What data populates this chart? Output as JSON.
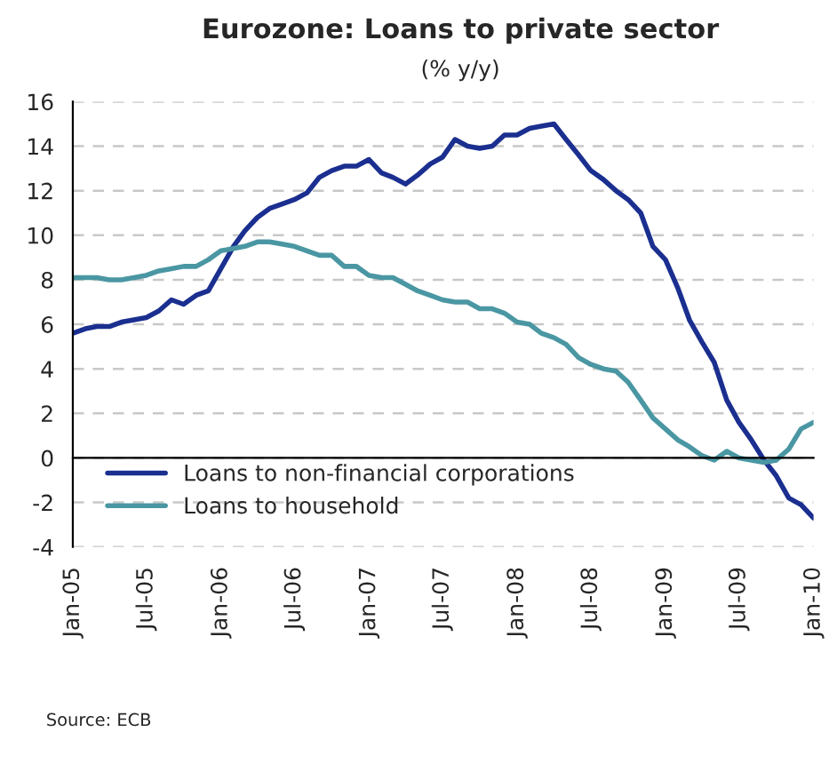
{
  "chart_data": {
    "type": "line",
    "title": "Eurozone: Loans to private sector",
    "subtitle": "(% y/y)",
    "annotations": [
      "Source: ECB"
    ],
    "x": [
      "2005-01",
      "2005-02",
      "2005-03",
      "2005-04",
      "2005-05",
      "2005-06",
      "2005-07",
      "2005-08",
      "2005-09",
      "2005-10",
      "2005-11",
      "2005-12",
      "2006-01",
      "2006-02",
      "2006-03",
      "2006-04",
      "2006-05",
      "2006-06",
      "2006-07",
      "2006-08",
      "2006-09",
      "2006-10",
      "2006-11",
      "2006-12",
      "2007-01",
      "2007-02",
      "2007-03",
      "2007-04",
      "2007-05",
      "2007-06",
      "2007-07",
      "2007-08",
      "2007-09",
      "2007-10",
      "2007-11",
      "2007-12",
      "2008-01",
      "2008-02",
      "2008-03",
      "2008-04",
      "2008-05",
      "2008-06",
      "2008-07",
      "2008-08",
      "2008-09",
      "2008-10",
      "2008-11",
      "2008-12",
      "2009-01",
      "2009-02",
      "2009-03",
      "2009-04",
      "2009-05",
      "2009-06",
      "2009-07",
      "2009-08",
      "2009-09",
      "2009-10",
      "2009-11",
      "2009-12",
      "2010-01"
    ],
    "series": [
      {
        "name": "Loans to non-financial corporations",
        "color": "#1a2f8f",
        "values": [
          5.6,
          5.8,
          5.9,
          5.9,
          6.1,
          6.2,
          6.3,
          6.6,
          7.1,
          6.9,
          7.3,
          7.5,
          8.5,
          9.5,
          10.2,
          10.8,
          11.2,
          11.4,
          11.6,
          11.9,
          12.6,
          12.9,
          13.1,
          13.1,
          13.4,
          12.8,
          12.6,
          12.3,
          12.7,
          13.2,
          13.5,
          14.3,
          14.0,
          13.9,
          14.0,
          14.5,
          14.5,
          14.8,
          14.9,
          15.0,
          14.3,
          13.6,
          12.9,
          12.5,
          12.0,
          11.6,
          11.0,
          9.5,
          8.9,
          7.6,
          6.2,
          5.2,
          4.3,
          2.6,
          1.6,
          0.8,
          -0.1,
          -0.8,
          -1.8,
          -2.1,
          -2.7
        ]
      },
      {
        "name": "Loans to household",
        "color": "#4a97a3",
        "values": [
          8.1,
          8.1,
          8.1,
          8.0,
          8.0,
          8.1,
          8.2,
          8.4,
          8.5,
          8.6,
          8.6,
          8.9,
          9.3,
          9.4,
          9.5,
          9.7,
          9.7,
          9.6,
          9.5,
          9.3,
          9.1,
          9.1,
          8.6,
          8.6,
          8.2,
          8.1,
          8.1,
          7.8,
          7.5,
          7.3,
          7.1,
          7.0,
          7.0,
          6.7,
          6.7,
          6.5,
          6.1,
          6.0,
          5.6,
          5.4,
          5.1,
          4.5,
          4.2,
          4.0,
          3.9,
          3.4,
          2.6,
          1.8,
          1.3,
          0.8,
          0.5,
          0.1,
          -0.1,
          0.3,
          0.0,
          -0.1,
          -0.2,
          -0.1,
          0.4,
          1.3,
          1.6
        ]
      }
    ],
    "xlim": [
      "2005-01",
      "2010-01"
    ],
    "xticks": [
      {
        "value": "2005-01",
        "label": "Jan-05"
      },
      {
        "value": "2005-07",
        "label": "Jul-05"
      },
      {
        "value": "2006-01",
        "label": "Jan-06"
      },
      {
        "value": "2006-07",
        "label": "Jul-06"
      },
      {
        "value": "2007-01",
        "label": "Jan-07"
      },
      {
        "value": "2007-07",
        "label": "Jul-07"
      },
      {
        "value": "2008-01",
        "label": "Jan-08"
      },
      {
        "value": "2008-07",
        "label": "Jul-08"
      },
      {
        "value": "2009-01",
        "label": "Jan-09"
      },
      {
        "value": "2009-07",
        "label": "Jul-09"
      },
      {
        "value": "2010-01",
        "label": "Jan-10"
      }
    ],
    "ylim": [
      -4,
      16
    ],
    "yticks": [
      -4,
      -2,
      0,
      2,
      4,
      6,
      8,
      10,
      12,
      14,
      16
    ],
    "grid": "y",
    "legend": "bottom left",
    "line_style": "solid",
    "marker": "none"
  }
}
